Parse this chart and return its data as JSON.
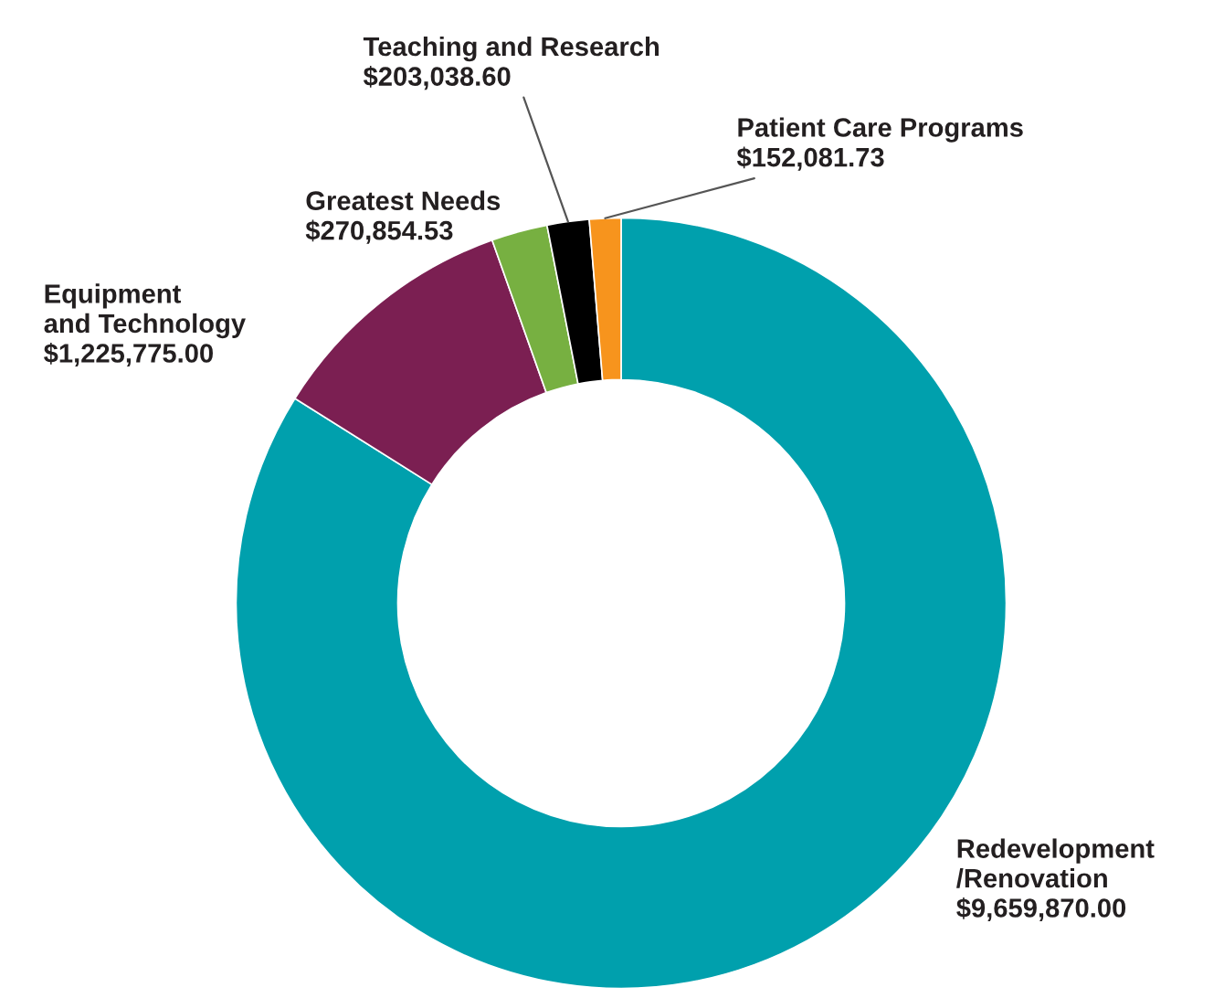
{
  "chart_data": {
    "type": "donut",
    "categories": [
      "Redevelopment\n/Renovation",
      "Equipment\nand Technology",
      "Greatest Needs",
      "Teaching and Research",
      "Patient Care Programs"
    ],
    "values": [
      9659870.0,
      1225775.0,
      270854.53,
      203038.6,
      152081.73
    ],
    "colors": [
      "#00a0ad",
      "#7b1f52",
      "#77b041",
      "#000000",
      "#f7941d"
    ],
    "value_labels": [
      "$9,659,870.00",
      "$1,225,775.00",
      "$270,854.53",
      "$203,038.60",
      "$152,081.73"
    ],
    "legend": false
  }
}
